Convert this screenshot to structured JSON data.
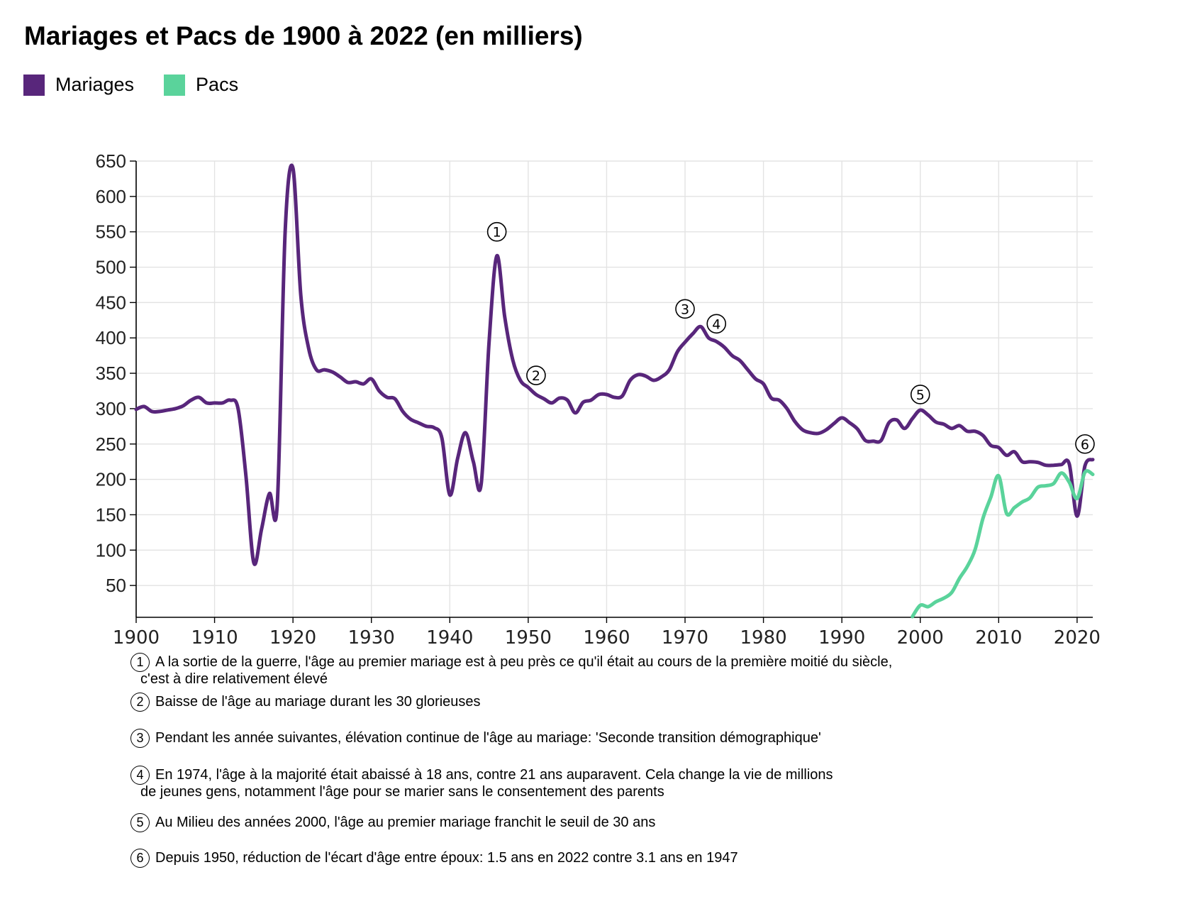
{
  "chart_data": {
    "type": "line",
    "title": "Mariages et Pacs de 1900 à 2022 (en milliers)",
    "xlabel": "",
    "ylabel": "",
    "xlim": [
      1900,
      2022
    ],
    "ylim": [
      5,
      650
    ],
    "x_ticks": [
      1900,
      1910,
      1920,
      1930,
      1940,
      1950,
      1960,
      1970,
      1980,
      1990,
      2000,
      2010,
      2020
    ],
    "y_ticks": [
      50,
      100,
      150,
      200,
      250,
      300,
      350,
      400,
      450,
      500,
      550,
      600,
      650
    ],
    "grid": true,
    "legend_position": "top-left",
    "series": [
      {
        "name": "Mariages",
        "color": "#58267b",
        "points": [
          [
            1900,
            299
          ],
          [
            1901,
            303
          ],
          [
            1902,
            296
          ],
          [
            1903,
            296
          ],
          [
            1904,
            298
          ],
          [
            1905,
            300
          ],
          [
            1906,
            304
          ],
          [
            1907,
            312
          ],
          [
            1908,
            316
          ],
          [
            1909,
            308
          ],
          [
            1910,
            308
          ],
          [
            1911,
            308
          ],
          [
            1912,
            312
          ],
          [
            1913,
            300
          ],
          [
            1914,
            205
          ],
          [
            1915,
            82
          ],
          [
            1916,
            130
          ],
          [
            1917,
            180
          ],
          [
            1918,
            165
          ],
          [
            1919,
            550
          ],
          [
            1920,
            640
          ],
          [
            1921,
            460
          ],
          [
            1922,
            385
          ],
          [
            1923,
            355
          ],
          [
            1924,
            355
          ],
          [
            1925,
            352
          ],
          [
            1926,
            345
          ],
          [
            1927,
            337
          ],
          [
            1928,
            338
          ],
          [
            1929,
            335
          ],
          [
            1930,
            342
          ],
          [
            1931,
            325
          ],
          [
            1932,
            316
          ],
          [
            1933,
            314
          ],
          [
            1934,
            296
          ],
          [
            1935,
            285
          ],
          [
            1936,
            280
          ],
          [
            1937,
            275
          ],
          [
            1938,
            273
          ],
          [
            1939,
            258
          ],
          [
            1940,
            178
          ],
          [
            1941,
            230
          ],
          [
            1942,
            266
          ],
          [
            1943,
            225
          ],
          [
            1944,
            193
          ],
          [
            1945,
            393
          ],
          [
            1946,
            516
          ],
          [
            1947,
            430
          ],
          [
            1948,
            370
          ],
          [
            1949,
            340
          ],
          [
            1950,
            330
          ],
          [
            1951,
            320
          ],
          [
            1952,
            314
          ],
          [
            1953,
            308
          ],
          [
            1954,
            315
          ],
          [
            1955,
            312
          ],
          [
            1956,
            294
          ],
          [
            1957,
            309
          ],
          [
            1958,
            312
          ],
          [
            1959,
            320
          ],
          [
            1960,
            320
          ],
          [
            1961,
            316
          ],
          [
            1962,
            318
          ],
          [
            1963,
            340
          ],
          [
            1964,
            348
          ],
          [
            1965,
            346
          ],
          [
            1966,
            340
          ],
          [
            1967,
            345
          ],
          [
            1968,
            355
          ],
          [
            1969,
            380
          ],
          [
            1970,
            394
          ],
          [
            1971,
            406
          ],
          [
            1972,
            416
          ],
          [
            1973,
            400
          ],
          [
            1974,
            395
          ],
          [
            1975,
            387
          ],
          [
            1976,
            375
          ],
          [
            1977,
            368
          ],
          [
            1978,
            355
          ],
          [
            1979,
            342
          ],
          [
            1980,
            335
          ],
          [
            1981,
            315
          ],
          [
            1982,
            312
          ],
          [
            1983,
            300
          ],
          [
            1984,
            282
          ],
          [
            1985,
            270
          ],
          [
            1986,
            266
          ],
          [
            1987,
            265
          ],
          [
            1988,
            270
          ],
          [
            1989,
            279
          ],
          [
            1990,
            287
          ],
          [
            1991,
            280
          ],
          [
            1992,
            271
          ],
          [
            1993,
            255
          ],
          [
            1994,
            254
          ],
          [
            1995,
            255
          ],
          [
            1996,
            280
          ],
          [
            1997,
            284
          ],
          [
            1998,
            272
          ],
          [
            1999,
            286
          ],
          [
            2000,
            298
          ],
          [
            2001,
            291
          ],
          [
            2002,
            281
          ],
          [
            2003,
            278
          ],
          [
            2004,
            272
          ],
          [
            2005,
            276
          ],
          [
            2006,
            268
          ],
          [
            2007,
            268
          ],
          [
            2008,
            262
          ],
          [
            2009,
            248
          ],
          [
            2010,
            245
          ],
          [
            2011,
            234
          ],
          [
            2012,
            239
          ],
          [
            2013,
            225
          ],
          [
            2014,
            225
          ],
          [
            2015,
            224
          ],
          [
            2016,
            220
          ],
          [
            2017,
            220
          ],
          [
            2018,
            221
          ],
          [
            2019,
            222
          ],
          [
            2020,
            148
          ],
          [
            2021,
            219
          ],
          [
            2022,
            228
          ]
        ]
      },
      {
        "name": "Pacs",
        "color": "#5ad39b",
        "points": [
          [
            1999,
            6
          ],
          [
            2000,
            22
          ],
          [
            2001,
            20
          ],
          [
            2002,
            27
          ],
          [
            2003,
            32
          ],
          [
            2004,
            40
          ],
          [
            2005,
            60
          ],
          [
            2006,
            77
          ],
          [
            2007,
            101
          ],
          [
            2008,
            145
          ],
          [
            2009,
            175
          ],
          [
            2010,
            205
          ],
          [
            2011,
            152
          ],
          [
            2012,
            160
          ],
          [
            2013,
            168
          ],
          [
            2014,
            174
          ],
          [
            2015,
            189
          ],
          [
            2016,
            191
          ],
          [
            2017,
            194
          ],
          [
            2018,
            209
          ],
          [
            2019,
            196
          ],
          [
            2020,
            173
          ],
          [
            2021,
            210
          ],
          [
            2022,
            207
          ]
        ]
      }
    ],
    "annotations": [
      {
        "label": "1",
        "x": 1946,
        "y": 550,
        "text": "A la sortie de la guerre, l'âge au premier mariage est à peu près ce qu'il était au cours de la première moitié du siècle,",
        "text2": "c'est à dire relativement élevé"
      },
      {
        "label": "2",
        "x": 1951,
        "y": 347,
        "text": "Baisse de l'âge au mariage durant les 30 glorieuses",
        "text2": ""
      },
      {
        "label": "3",
        "x": 1970,
        "y": 441,
        "text": "Pendant les année suivantes, élévation continue de l'âge au mariage: 'Seconde transition démographique'",
        "text2": ""
      },
      {
        "label": "4",
        "x": 1974,
        "y": 420,
        "text": "En 1974, l'âge à la majorité était abaissé à 18 ans, contre 21 ans auparavent. Cela change la vie de millions",
        "text2": "de jeunes gens, notamment l'âge pour se marier sans le consentement des parents"
      },
      {
        "label": "5",
        "x": 2000,
        "y": 320,
        "text": "Au Milieu des années 2000, l'âge au premier mariage franchit le seuil de 30 ans",
        "text2": ""
      },
      {
        "label": "6",
        "x": 2021,
        "y": 250,
        "text": "Depuis 1950, réduction de l'écart d'âge entre époux: 1.5 ans en 2022 contre 3.1 ans en 1947",
        "text2": ""
      }
    ]
  }
}
